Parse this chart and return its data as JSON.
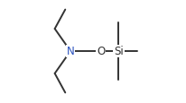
{
  "bg_color": "#ffffff",
  "line_color": "#333333",
  "atoms": {
    "N": [
      0.285,
      0.5
    ],
    "O": [
      0.575,
      0.5
    ],
    "Si": [
      0.745,
      0.5
    ]
  },
  "atom_label_colors": {
    "N": "#2a52be",
    "O": "#333333",
    "Si": "#333333"
  },
  "bonds": [
    [
      [
        0.285,
        0.5
      ],
      [
        0.575,
        0.5
      ]
    ],
    [
      [
        0.575,
        0.5
      ],
      [
        0.745,
        0.5
      ]
    ],
    [
      [
        0.745,
        0.5
      ],
      [
        0.92,
        0.5
      ]
    ],
    [
      [
        0.745,
        0.5
      ],
      [
        0.745,
        0.22
      ]
    ],
    [
      [
        0.745,
        0.5
      ],
      [
        0.745,
        0.78
      ]
    ],
    [
      [
        0.285,
        0.5
      ],
      [
        0.135,
        0.285
      ]
    ],
    [
      [
        0.135,
        0.285
      ],
      [
        0.235,
        0.1
      ]
    ],
    [
      [
        0.285,
        0.5
      ],
      [
        0.135,
        0.715
      ]
    ],
    [
      [
        0.135,
        0.715
      ],
      [
        0.235,
        0.9
      ]
    ]
  ],
  "font_size_atoms": 8.5,
  "line_width": 1.4
}
